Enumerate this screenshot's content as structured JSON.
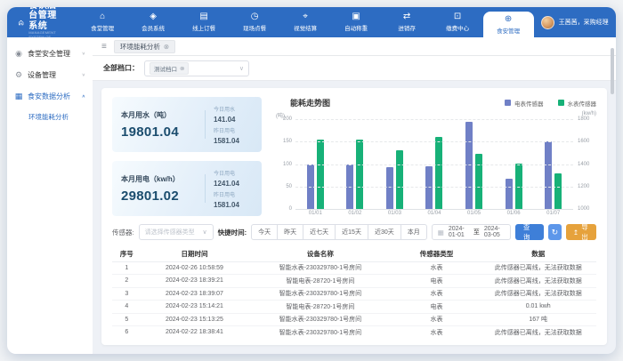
{
  "app": {
    "title": "餐饮后台管理系统",
    "subtitle": "MANAGEMENT SYSTEM OF SMART CANTEEN"
  },
  "header": {
    "nav": [
      {
        "label": "食堂管理",
        "icon": "canteen-icon",
        "active": false
      },
      {
        "label": "会员系统",
        "icon": "member-icon",
        "active": false
      },
      {
        "label": "线上订餐",
        "icon": "online-order-icon",
        "active": false
      },
      {
        "label": "现场点餐",
        "icon": "onsite-order-icon",
        "active": false
      },
      {
        "label": "视觉结算",
        "icon": "vision-checkout-icon",
        "active": false
      },
      {
        "label": "自动称重",
        "icon": "auto-weighing-icon",
        "active": false
      },
      {
        "label": "进销存",
        "icon": "inventory-icon",
        "active": false
      },
      {
        "label": "缴费中心",
        "icon": "payment-center-icon",
        "active": false
      },
      {
        "label": "食安管理",
        "icon": "food-safety-icon",
        "active": true
      }
    ],
    "user": {
      "name": "王茜茜，采购经理"
    }
  },
  "sidebar": {
    "items": [
      {
        "label": "食堂安全管理",
        "icon": "monitor-icon",
        "expanded": false,
        "active": false,
        "children": []
      },
      {
        "label": "设备管理",
        "icon": "device-icon",
        "expanded": false,
        "active": false,
        "children": []
      },
      {
        "label": "食安数据分析",
        "icon": "analysis-icon",
        "expanded": true,
        "active": true,
        "children": [
          {
            "label": "环境能耗分析",
            "active": true
          }
        ]
      }
    ]
  },
  "tabbar": {
    "tabs": [
      {
        "label": "环境能耗分析",
        "closable": true
      }
    ]
  },
  "stall_filter": {
    "label": "全部档口：",
    "tag": "测试档口"
  },
  "stats": [
    {
      "title": "本月用水（吨）",
      "value": "19801.04",
      "details": [
        {
          "label": "今日用水",
          "value": "141.04"
        },
        {
          "label": "昨日用电",
          "value": "1581.04"
        }
      ]
    },
    {
      "title": "本月用电（kw/h）",
      "value": "29801.02",
      "details": [
        {
          "label": "今日用电",
          "value": "1241.04"
        },
        {
          "label": "昨日用电",
          "value": "1581.04"
        }
      ]
    }
  ],
  "chart_data": {
    "type": "bar",
    "title": "能耗走势图",
    "categories": [
      "01/01",
      "01/02",
      "01/03",
      "01/04",
      "01/05",
      "01/06",
      "01/07"
    ],
    "series": [
      {
        "name": "电表传感器",
        "color": "#7080c6",
        "axis": "right",
        "unit": "kw/h",
        "values": [
          1400,
          1400,
          1370,
          1380,
          1775,
          1270,
          1600
        ]
      },
      {
        "name": "水表传感器",
        "color": "#17b178",
        "axis": "left",
        "unit": "吨",
        "values": [
          155,
          155,
          131,
          160,
          122,
          102,
          79
        ]
      }
    ],
    "left_axis": {
      "unit": "(吨)",
      "min": 0,
      "max": 200,
      "ticks": [
        0,
        50,
        100,
        150,
        200
      ]
    },
    "right_axis": {
      "unit": "(kw/h)",
      "min": 1000,
      "max": 1800,
      "ticks": [
        1000,
        1200,
        1400,
        1600,
        1800
      ]
    },
    "grid": true,
    "legend_position": "top-right"
  },
  "toolbar": {
    "sensor_label": "传感器:",
    "sensor_placeholder": "请选择传感器类型",
    "quick_label": "快捷时间:",
    "quick_options": [
      "今天",
      "昨天",
      "近七天",
      "近15天",
      "近30天",
      "本月"
    ],
    "date_start": "2024-01-01",
    "date_separator": "至",
    "date_end": "2024-03-05",
    "search_label": "查询",
    "export_label": "导出"
  },
  "table": {
    "headers": [
      "序号",
      "日期时间",
      "设备名称",
      "传感器类型",
      "数据"
    ],
    "rows": [
      [
        "1",
        "2024-02-26 10:58:59",
        "智能水表-230329780-1号房间",
        "水表",
        "此传感器已离线，无法获取数据"
      ],
      [
        "2",
        "2024-02-23 18:39:21",
        "智能电表-28720-1号房间",
        "电表",
        "此传感器已离线，无法获取数据"
      ],
      [
        "3",
        "2024-02-23 18:39:07",
        "智能水表-230329780-1号房间",
        "水表",
        "此传感器已离线，无法获取数据"
      ],
      [
        "4",
        "2024-02-23 15:14:21",
        "智能电表-28720-1号房间",
        "电表",
        "0.01 kwh"
      ],
      [
        "5",
        "2024-02-23 15:13:25",
        "智能水表-230329780-1号房间",
        "水表",
        "167 吨"
      ],
      [
        "6",
        "2024-02-22 18:38:41",
        "智能水表-230329780-1号房间",
        "水表",
        "此传感器已离线，无法获取数据"
      ]
    ]
  },
  "colors": {
    "header_blue": "#2d6cc2",
    "accent": "#2d6cc2",
    "search_button": "#3e7fd8",
    "export_button": "#e6a23c",
    "bar_blue": "#7080c6",
    "bar_green": "#17b178",
    "stat_value": "#1b4d6e"
  }
}
